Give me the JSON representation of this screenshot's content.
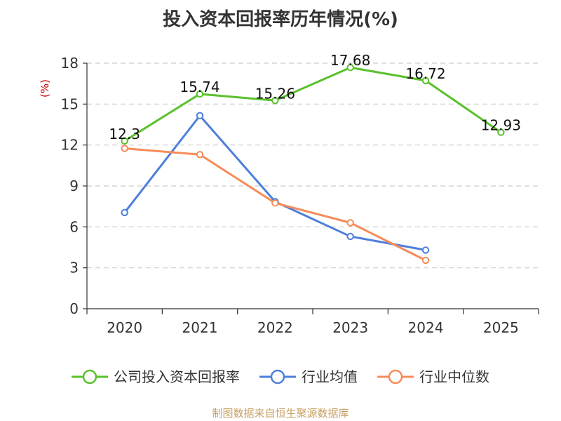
{
  "chart_data": {
    "type": "line",
    "title": "投入资本回报率历年情况(%)",
    "ylabel": "(%)",
    "xlabel": "",
    "categories": [
      "2020",
      "2021",
      "2022",
      "2023",
      "2024",
      "2025"
    ],
    "ylim": [
      0,
      18
    ],
    "yticks": [
      0,
      3,
      6,
      9,
      12,
      15,
      18
    ],
    "grid": true,
    "legend_position": "bottom",
    "series": [
      {
        "name": "公司投入资本回报率",
        "color": "#5ac12c",
        "values": [
          12.3,
          15.74,
          15.26,
          17.68,
          16.72,
          12.93
        ],
        "labels": [
          "12.3",
          "15.74",
          "15.26",
          "17.68",
          "16.72",
          "12.93"
        ]
      },
      {
        "name": "行业均值",
        "color": "#4e7fdb",
        "values": [
          7.05,
          14.15,
          7.85,
          5.3,
          4.3,
          null
        ]
      },
      {
        "name": "行业中位数",
        "color": "#f68c5a",
        "values": [
          11.75,
          11.3,
          7.75,
          6.3,
          3.55,
          null
        ]
      }
    ]
  },
  "source": "制图数据来自恒生聚源数据库",
  "colors": {
    "unit_label": "#cc0000",
    "source": "#c8a063",
    "axis": "#333333",
    "grid": "#cccccc"
  }
}
